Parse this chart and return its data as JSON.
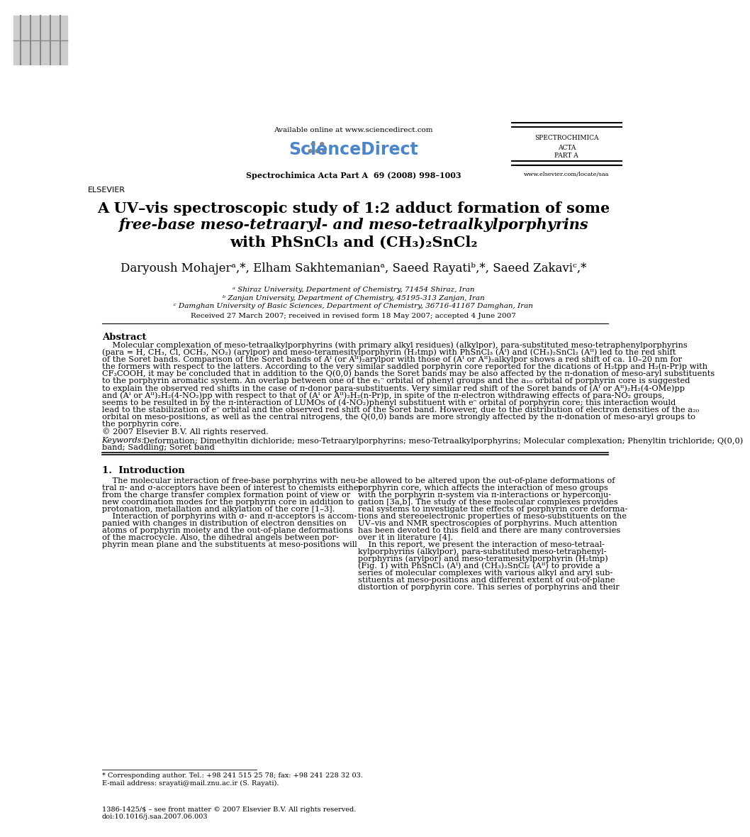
{
  "bg_color": "#ffffff",
  "header_available": "Available online at www.sciencedirect.com",
  "journal_info": "Spectrochimica Acta Part A  69 (2008) 998–1003",
  "journal_name_lines": [
    "SPECTROCHIMICA",
    "ACTA",
    "PART A"
  ],
  "journal_url": "www.elsevier.com/locate/saa",
  "title_line1": "A UV–vis spectroscopic study of 1:2 adduct formation of some",
  "title_line2": "free-base meso-tetraaryl- and meso-tetraalkylporphyrins",
  "title_line3": "with PhSnCl₃ and (CH₃)₂SnCl₂",
  "authors": "Daryoush Mohajerᵃ,*, Elham Sakhtemanianᵃ, Saeed Rayatiᵇ,*, Saeed Zakaviᶜ,*",
  "affil_a": "ᵃ Shiraz University, Department of Chemistry, 71454 Shiraz, Iran",
  "affil_b": "ᵇ Zanjan University, Department of Chemistry, 45195-313 Zanjan, Iran",
  "affil_c": "ᶜ Damghan University of Basic Sciences, Department of Chemistry, 36716-41167 Damghan, Iran",
  "received": "Received 27 March 2007; received in revised form 18 May 2007; accepted 4 June 2007",
  "abstract_title": "Abstract",
  "abstract_line1": "    Molecular complexation of meso-tetraalkylporphyrins (with primary alkyl residues) (alkylpor), para-substituted meso-tetraphenylporphyrins",
  "abstract_line2": "(para = H, CH₃, Cl, OCH₃, NO₂) (arylpor) and meso-teramesitylporphyrin (H₂tmp) with PhSnCl₃ (Aᴵ) and (CH₃)₂SnCl₂ (Aᴵᴵ) led to the red shift",
  "abstract_line3": "of the Soret bands. Comparison of the Soret bands of Aᴵ (or Aᴵᴵ)₂arylpor with those of (Aᴵ or Aᴵᴵ)₂alkylpor shows a red shift of ca. 10–20 nm for",
  "abstract_line4": "the formers with respect to the latters. According to the very similar saddled porphyrin core reported for the dications of H₂tpp and H₂(n-Pr)p with",
  "abstract_line5": "CF₃COOH, it may be concluded that in addition to the Q(0,0) bands the Soret bands may be also affected by the π-donation of meso-aryl substituents",
  "abstract_line6": "to the porphyrin aromatic system. An overlap between one of the e₁ᵔ orbital of phenyl groups and the a₁₀ orbital of porphyrin core is suggested",
  "abstract_line7": "to explain the observed red shifts in the case of π-donor para-substituents. Very similar red shift of the Soret bands of (Aᴵ or Aᴵᴵ)₂H₂(4-OMe)pp",
  "abstract_line8": "and (Aᴵ or Aᴵᴵ)₂H₂(4-NO₂)pp with respect to that of (Aᴵ or Aᴵᴵ)₂H₂(n-Pr)p, in spite of the π-electron withdrawing effects of para-NO₂ groups,",
  "abstract_line9": "seems to be resulted in by the π-interaction of LUMOs of (4-NO₂)phenyl substituent with eᵔ orbital of porphyrin core; this interaction would",
  "abstract_line10": "lead to the stabilization of eᵔ orbital and the observed red shift of the Soret band. However, due to the distribution of electron densities of the a₂₀",
  "abstract_line11": "orbital on meso-positions, as well as the central nitrogens, the Q(0,0) bands are more strongly affected by the π-donation of meso-aryl groups to",
  "abstract_line12": "the porphyrin core.",
  "abstract_copy": "© 2007 Elsevier B.V. All rights reserved.",
  "keywords_label": "Keywords:",
  "keywords_line1": "  Deformation; Dimethyltin dichloride; meso-Tetraarylporphyrins; meso-Tetraalkylporphyrins; Molecular complexation; Phenyltin trichloride; Q(0,0)",
  "keywords_line2": "band; Saddling; Soret band",
  "section1_title": "1.  Introduction",
  "col1_line1": "    The molecular interaction of free-base porphyrins with neu-",
  "col1_line2": "tral π- and σ-acceptors have been of interest to chemists either",
  "col1_line3": "from the charge transfer complex formation point of view or",
  "col1_line4": "new coordination modes for the porphyrin core in addition to",
  "col1_line5": "protonation, metallation and alkylation of the core [1–3].",
  "col1_line6": "    Interaction of porphyrins with σ- and π-acceptors is accom-",
  "col1_line7": "panied with changes in distribution of electron densities on",
  "col1_line8": "atoms of porphyrin moiety and the out-of-plane deformations",
  "col1_line9": "of the macrocycle. Also, the dihedral angels between por-",
  "col1_line10": "phyrin mean plane and the substituents at meso-positions will",
  "col2_line1": "be allowed to be altered upon the out-of-plane deformations of",
  "col2_line2": "porphyrin core, which affects the interaction of meso groups",
  "col2_line3": "with the porphyrin π-system via π-interactions or hyperconju-",
  "col2_line4": "gation [3a,b]. The study of these molecular complexes provides",
  "col2_line5": "real systems to investigate the effects of porphyrin core deforma-",
  "col2_line6": "tions and stereoelectronic properties of meso-substituents on the",
  "col2_line7": "UV–vis and NMR spectroscopies of porphyrins. Much attention",
  "col2_line8": "has been devoted to this field and there are many controversies",
  "col2_line9": "over it in literature [4].",
  "col2_line10": "    In this report, we present the interaction of meso-tetraal-",
  "col2_line11": "kylporphyrins (alkylpor), para-substituted meso-tetraphenyl-",
  "col2_line12": "porphyrins (arylpor) and meso-teramesitylporphyrin (H₂tmp)",
  "col2_line13": "(Fig. 1) with PhSnCl₃ (Aᴵ) and (CH₃)₂SnCl₂ (Aᴵᴵ) to provide a",
  "col2_line14": "series of molecular complexes with various alkyl and aryl sub-",
  "col2_line15": "stituents at meso-positions and different extent of out-of-plane",
  "col2_line16": "distortion of porphyrin core. This series of porphyrins and their",
  "footnote1": "* Corresponding author. Tel.: +98 241 515 25 78; fax: +98 241 228 32 03.",
  "footnote2": "E-mail address: srayati@mail.znu.ac.ir (S. Rayati).",
  "footer1": "1386-1425/$ – see front matter © 2007 Elsevier B.V. All rights reserved.",
  "footer2": "doi:10.1016/j.saa.2007.06.003"
}
